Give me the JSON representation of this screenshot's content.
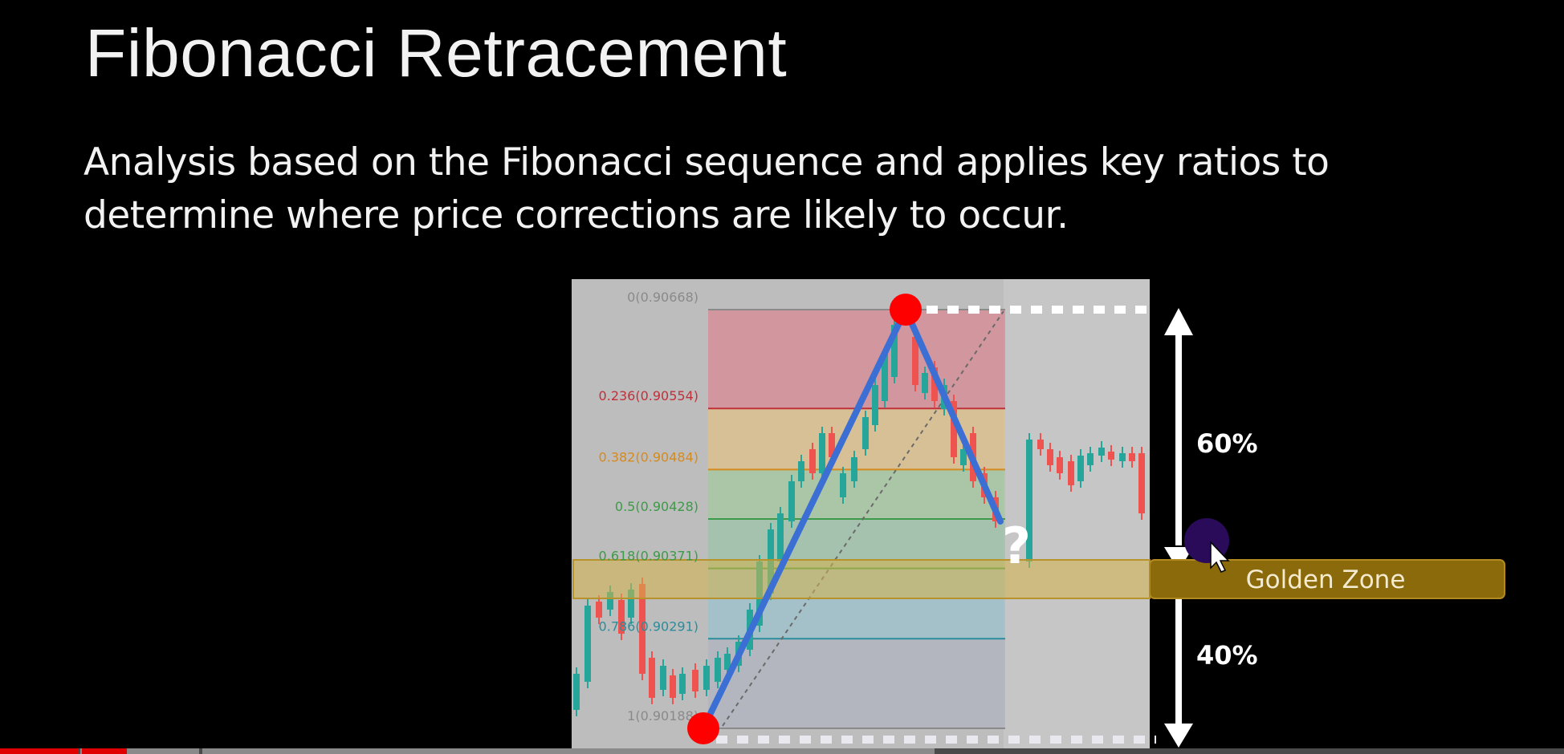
{
  "slide": {
    "title": "Fibonacci Retracement",
    "body": "Analysis based on the Fibonacci sequence and applies key ratios to determine where price corrections are likely to occur."
  },
  "chart": {
    "fib_levels": [
      {
        "label": "0(0.90668)",
        "ratio": 0,
        "price": 0.90668,
        "color": "#8a8a8a"
      },
      {
        "label": "0.236(0.90554)",
        "ratio": 0.236,
        "price": 0.90554,
        "color": "#c0303a"
      },
      {
        "label": "0.382(0.90484)",
        "ratio": 0.382,
        "price": 0.90484,
        "color": "#d68a1e"
      },
      {
        "label": "0.5(0.90428)",
        "ratio": 0.5,
        "price": 0.90428,
        "color": "#3d9a48"
      },
      {
        "label": "0.618(0.90371)",
        "ratio": 0.618,
        "price": 0.90371,
        "color": "#3d9a48"
      },
      {
        "label": "0.786(0.90291)",
        "ratio": 0.786,
        "price": 0.90291,
        "color": "#2a8d9c"
      },
      {
        "label": "1(0.90188)",
        "ratio": 1,
        "price": 0.90188,
        "color": "#8a8a8a"
      }
    ],
    "band_colors": [
      "#d98a95",
      "#e2c28a",
      "#a6c9a0",
      "#9cc4a8",
      "#9cc2cc",
      "#b0b4c0"
    ],
    "annotations": {
      "upper_pct": "60%",
      "lower_pct": "40%",
      "golden_zone": "Golden Zone",
      "question_mark": "?"
    },
    "colors": {
      "swing_line": "#3b6fd4",
      "swing_point": "#ff0000",
      "golden_band": "#d4b24a",
      "golden_label_bg": "#8a6a0a",
      "golden_label_text": "#f3ead0",
      "arrow": "#ffffff",
      "up_candle": "#26a69a",
      "down_candle": "#ef5350",
      "cursor_dot": "#2a0b5a"
    }
  }
}
